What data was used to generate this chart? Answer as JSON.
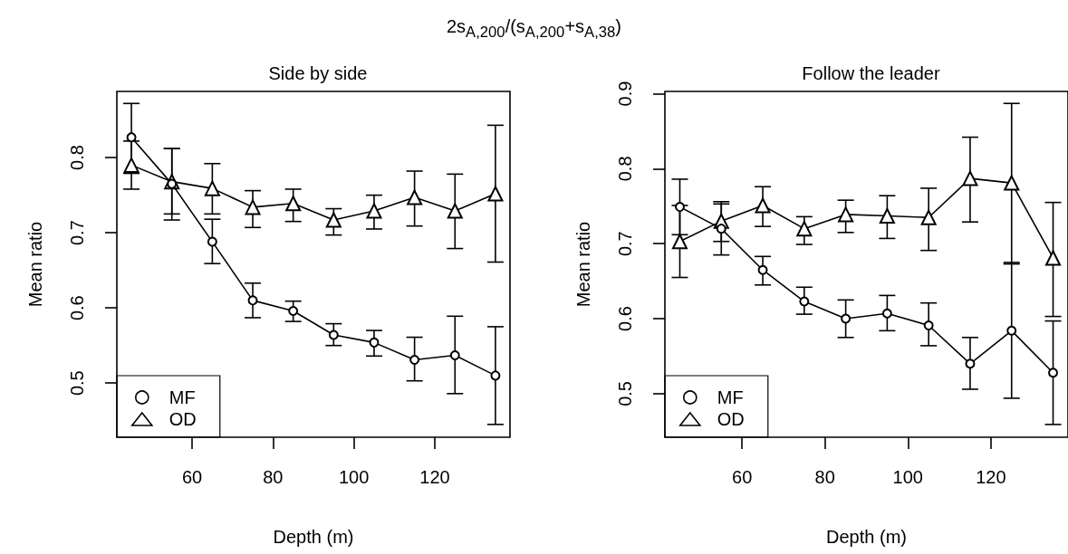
{
  "chart_data": [
    {
      "type": "line",
      "title": "Side by side",
      "annotations": [
        "2s$_{A,200}$/(s$_{A,200}$+s$_{A,38}$)"
      ],
      "xlabel": "Depth (m)",
      "ylabel": "Mean ratio",
      "x": [
        45,
        55,
        65,
        75,
        85,
        95,
        105,
        115,
        125,
        135
      ],
      "xlim": [
        41.4,
        138.6
      ],
      "xticks": [
        60,
        80,
        100,
        120
      ],
      "ylim": [
        0.428,
        0.888
      ],
      "yticks": [
        0.5,
        0.6,
        0.7,
        0.8
      ],
      "legend": "bottom left",
      "line_style": "solid",
      "series": [
        {
          "name": "MF",
          "color": "#000000",
          "marker": "circle",
          "values": [
            0.827,
            0.765,
            0.688,
            0.61,
            0.596,
            0.564,
            0.554,
            0.531,
            0.537,
            0.51
          ],
          "errors": [
            [
              0.779,
              0.872
            ],
            [
              0.717,
              0.812
            ],
            [
              0.659,
              0.718
            ],
            [
              0.587,
              0.633
            ],
            [
              0.582,
              0.609
            ],
            [
              0.55,
              0.579
            ],
            [
              0.536,
              0.57
            ],
            [
              0.503,
              0.561
            ],
            [
              0.486,
              0.589
            ],
            [
              0.445,
              0.575
            ]
          ]
        },
        {
          "name": "OD",
          "color": "#000000",
          "marker": "triangle",
          "values": [
            0.79,
            0.768,
            0.759,
            0.734,
            0.739,
            0.717,
            0.729,
            0.747,
            0.729,
            0.752
          ],
          "errors": [
            [
              0.758,
              0.822
            ],
            [
              0.725,
              0.812
            ],
            [
              0.725,
              0.792
            ],
            [
              0.707,
              0.756
            ],
            [
              0.715,
              0.758
            ],
            [
              0.697,
              0.732
            ],
            [
              0.705,
              0.75
            ],
            [
              0.709,
              0.782
            ],
            [
              0.679,
              0.778
            ],
            [
              0.661,
              0.843
            ]
          ]
        }
      ]
    },
    {
      "type": "line",
      "title": "Follow the leader",
      "xlabel": "Depth (m)",
      "ylabel": "Mean ratio",
      "x": [
        45,
        55,
        65,
        75,
        85,
        95,
        105,
        115,
        125,
        135
      ],
      "xlim": [
        41.4,
        138.6
      ],
      "xticks": [
        60,
        80,
        100,
        120
      ],
      "ylim": [
        0.442,
        0.903
      ],
      "yticks": [
        0.5,
        0.6,
        0.7,
        0.8,
        0.9
      ],
      "legend": "bottom left",
      "line_style": "solid",
      "series": [
        {
          "name": "MF",
          "color": "#000000",
          "marker": "circle",
          "values": [
            0.749,
            0.72,
            0.665,
            0.623,
            0.6,
            0.607,
            0.591,
            0.54,
            0.584,
            0.528
          ],
          "errors": [
            [
              0.712,
              0.786
            ],
            [
              0.685,
              0.756
            ],
            [
              0.645,
              0.683
            ],
            [
              0.606,
              0.642
            ],
            [
              0.575,
              0.625
            ],
            [
              0.584,
              0.631
            ],
            [
              0.564,
              0.621
            ],
            [
              0.506,
              0.575
            ],
            [
              0.494,
              0.675
            ],
            [
              0.459,
              0.597
            ]
          ]
        },
        {
          "name": "OD",
          "color": "#000000",
          "marker": "triangle",
          "values": [
            0.703,
            0.73,
            0.751,
            0.72,
            0.739,
            0.737,
            0.735,
            0.787,
            0.781,
            0.681
          ],
          "errors": [
            [
              0.655,
              0.751
            ],
            [
              0.703,
              0.753
            ],
            [
              0.723,
              0.776
            ],
            [
              0.699,
              0.736
            ],
            [
              0.715,
              0.758
            ],
            [
              0.707,
              0.764
            ],
            [
              0.691,
              0.774
            ],
            [
              0.729,
              0.842
            ],
            [
              0.673,
              0.887
            ],
            [
              0.603,
              0.755
            ]
          ]
        }
      ]
    }
  ]
}
